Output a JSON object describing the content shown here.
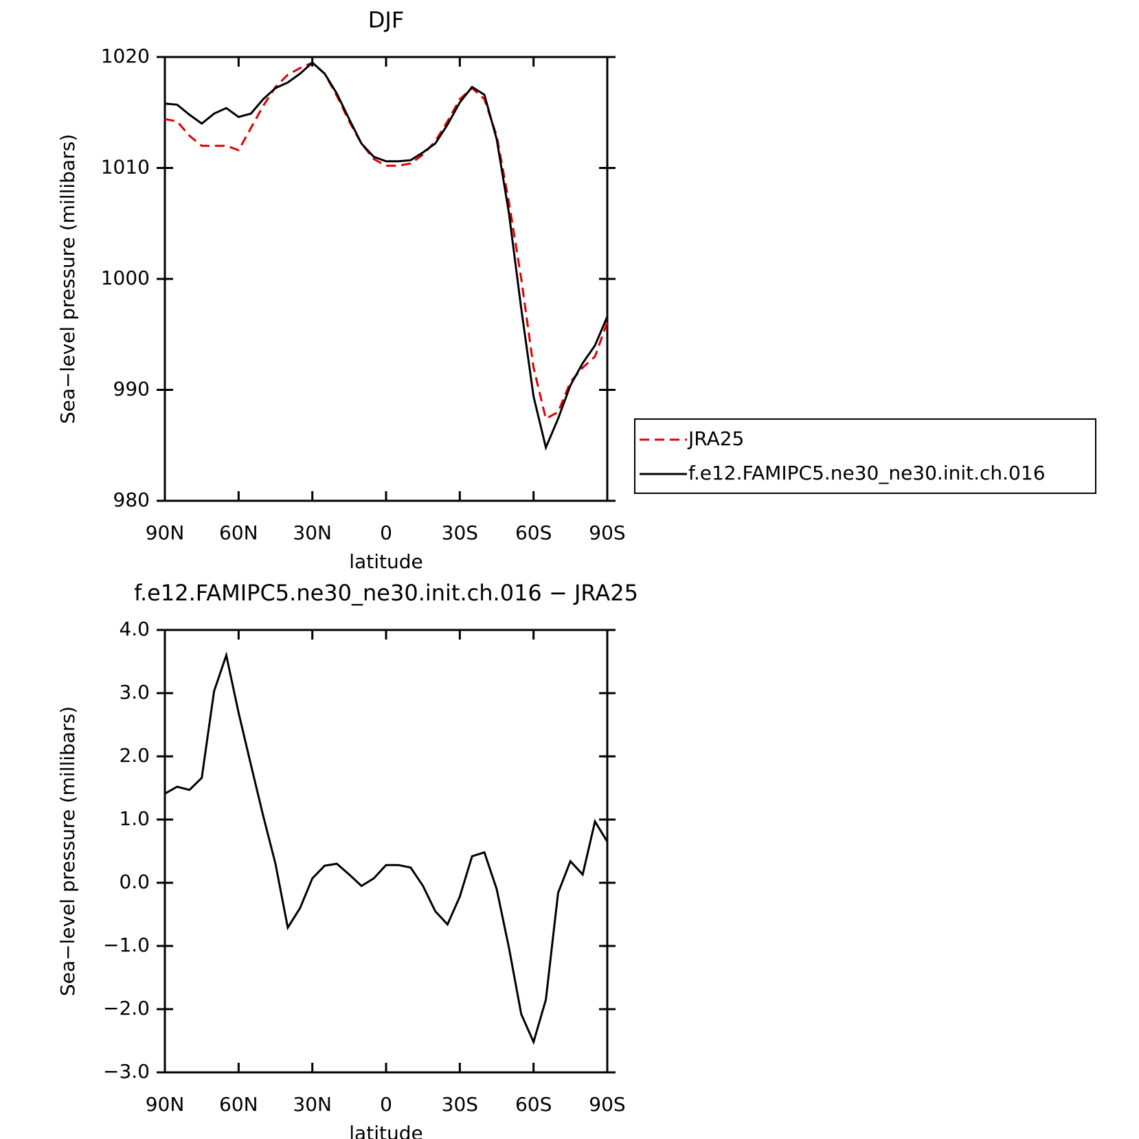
{
  "chart_data": [
    {
      "type": "line",
      "title": "DJF",
      "xlabel": "latitude",
      "ylabel": "Sea−level pressure (millibars)",
      "x": [
        90,
        85,
        80,
        75,
        70,
        65,
        60,
        55,
        50,
        45,
        40,
        35,
        30,
        25,
        20,
        15,
        10,
        5,
        0,
        -5,
        -10,
        -15,
        -20,
        -25,
        -30,
        -35,
        -40,
        -45,
        -50,
        -55,
        -60,
        -65,
        -70,
        -75,
        -80,
        -85,
        -90
      ],
      "series": [
        {
          "name": "JRA25",
          "color": "#e00000",
          "dash": true,
          "values": [
            1014.4,
            1014.2,
            1012.9,
            1012.0,
            1012.0,
            1012.0,
            1011.6,
            1013.6,
            1015.6,
            1017.3,
            1018.4,
            1019.0,
            1019.5,
            1018.5,
            1016.5,
            1014.2,
            1012.2,
            1010.8,
            1010.2,
            1010.2,
            1010.4,
            1011.2,
            1012.4,
            1014.2,
            1016.2,
            1017.2,
            1016.2,
            1012.9,
            1006.9,
            1000.0,
            992.0,
            987.4,
            988.0,
            990.7,
            992.0,
            993.0,
            996.1
          ]
        },
        {
          "name": "f.e12.FAMIPC5.ne30_ne30.init.ch.016",
          "color": "#000000",
          "dash": false,
          "values": [
            1015.8,
            1015.7,
            1014.8,
            1014.0,
            1014.9,
            1015.4,
            1014.6,
            1014.9,
            1016.2,
            1017.2,
            1017.7,
            1018.5,
            1019.5,
            1018.5,
            1016.7,
            1014.4,
            1012.2,
            1011.0,
            1010.6,
            1010.6,
            1010.7,
            1011.4,
            1012.2,
            1013.9,
            1015.9,
            1017.3,
            1016.6,
            1012.6,
            1005.9,
            997.3,
            989.4,
            984.8,
            987.4,
            990.4,
            992.4,
            994.0,
            996.6
          ]
        }
      ],
      "xlim": [
        90,
        -90
      ],
      "xticks": [
        {
          "value": 90,
          "label": "90N"
        },
        {
          "value": 60,
          "label": "60N"
        },
        {
          "value": 30,
          "label": "30N"
        },
        0,
        {
          "value": -30,
          "label": "30S"
        },
        {
          "value": -60,
          "label": "60S"
        },
        {
          "value": -90,
          "label": "90S"
        }
      ],
      "ylim": [
        980,
        1020
      ],
      "yticks": [
        980,
        990,
        1000,
        1010,
        1020
      ],
      "legend": "right"
    },
    {
      "type": "line",
      "title": "f.e12.FAMIPC5.ne30_ne30.init.ch.016 − JRA25",
      "xlabel": "latitude",
      "ylabel": "Sea−level pressure (millibars)",
      "x": [
        90,
        85,
        80,
        75,
        70,
        65,
        60,
        55,
        50,
        45,
        40,
        35,
        30,
        25,
        20,
        15,
        10,
        5,
        0,
        -5,
        -10,
        -15,
        -20,
        -25,
        -30,
        -35,
        -40,
        -45,
        -50,
        -55,
        -60,
        -65,
        -70,
        -75,
        -80,
        -85,
        -90
      ],
      "series": [
        {
          "color": "#000000",
          "dash": false,
          "values": [
            1.41,
            1.52,
            1.47,
            1.66,
            3.03,
            3.6,
            2.69,
            1.87,
            1.06,
            0.3,
            -0.71,
            -0.4,
            0.07,
            0.27,
            0.3,
            0.13,
            -0.05,
            0.07,
            0.28,
            0.28,
            0.24,
            -0.05,
            -0.45,
            -0.66,
            -0.22,
            0.42,
            0.48,
            -0.1,
            -1.03,
            -2.08,
            -2.52,
            -1.85,
            -0.16,
            0.34,
            0.13,
            0.97,
            0.65
          ]
        }
      ],
      "xlim": [
        90,
        -90
      ],
      "xticks": [
        {
          "value": 90,
          "label": "90N"
        },
        {
          "value": 60,
          "label": "60N"
        },
        {
          "value": 30,
          "label": "30N"
        },
        0,
        {
          "value": -30,
          "label": "30S"
        },
        {
          "value": -60,
          "label": "60S"
        },
        {
          "value": -90,
          "label": "90S"
        }
      ],
      "ylim": [
        -3,
        4
      ],
      "yticks": [
        {
          "value": -3,
          "label": "−3.0"
        },
        {
          "value": -2,
          "label": "−2.0"
        },
        {
          "value": -1,
          "label": "−1.0"
        },
        {
          "value": 0,
          "label": "0.0"
        },
        {
          "value": 1,
          "label": "1.0"
        },
        {
          "value": 2,
          "label": "2.0"
        },
        {
          "value": 3,
          "label": "3.0"
        },
        {
          "value": 4,
          "label": "4.0"
        }
      ]
    }
  ]
}
